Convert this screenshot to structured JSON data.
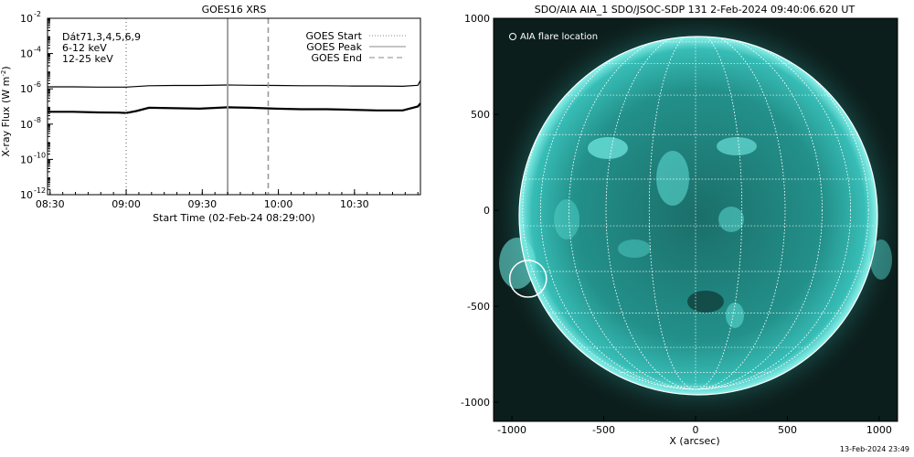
{
  "goes_panel": {
    "title": "GOES16 XRS",
    "ylabel": "X-ray Flux (W m",
    "ylabel_sup": "-2",
    "ylabel_end": ")",
    "xlabel": "Start Time (02-Feb-24 08:29:00)",
    "channels": [
      {
        "label": "Dát71,3,4,5,6,9",
        "color": "#000000"
      },
      {
        "label": "6-12 keV",
        "color": "#cc00cc"
      },
      {
        "label": "12-25 keV",
        "color": "#00cc00"
      }
    ],
    "legend": [
      {
        "label": "GOES Start",
        "style": "dotted"
      },
      {
        "label": "GOES Peak",
        "style": "solid"
      },
      {
        "label": "GOES End",
        "style": "dashed"
      }
    ]
  },
  "aia_panel": {
    "title": "SDO/AIA AIA_1 SDO/JSOC-SDP 131  2-Feb-2024 09:40:06.620 UT",
    "xlabel": "X (arcsec)",
    "legend_label": "AIA flare location",
    "colors": {
      "disk": "#2fb8b0",
      "background": "#0c1e1c",
      "grid": "#ffffff"
    }
  },
  "footer": {
    "timestamp": "13-Feb-2024 23:49"
  },
  "chart_data": [
    {
      "type": "line",
      "title": "GOES16 XRS",
      "xlabel": "Start Time (02-Feb-24 08:29:00)",
      "ylabel": "X-ray Flux (W m^-2)",
      "yscale": "log",
      "x_ticks": [
        "08:30",
        "09:00",
        "09:30",
        "10:00",
        "10:30"
      ],
      "x_tick_minutes": [
        1,
        31,
        61,
        91,
        121
      ],
      "y_ticks": [
        {
          "exp": "-2",
          "value": 0.01
        },
        {
          "exp": "-4",
          "value": 0.0001
        },
        {
          "exp": "-6",
          "value": 1e-06
        },
        {
          "exp": "-8",
          "value": 1e-08
        },
        {
          "exp": "-10",
          "value": 1e-10
        },
        {
          "exp": "-12",
          "value": 1e-12
        }
      ],
      "x_range_minutes": [
        0,
        147
      ],
      "ylim": [
        1e-12,
        0.01
      ],
      "grid": false,
      "legend_position": "top-right",
      "markers": [
        {
          "name": "GOES Start",
          "time": "09:00",
          "minute": 31,
          "style": "dotted"
        },
        {
          "name": "GOES Peak",
          "time": "09:40",
          "minute": 71,
          "style": "solid"
        },
        {
          "name": "GOES End",
          "time": "09:56",
          "minute": 87,
          "style": "dashed"
        }
      ],
      "series": [
        {
          "color": "#000000",
          "x": [
            0,
            10,
            20,
            31,
            40,
            50,
            60,
            71,
            80,
            90,
            100,
            110,
            120,
            130,
            140,
            146,
            147
          ],
          "y": [
            1.3e-06,
            1.3e-06,
            1.25e-06,
            1.25e-06,
            1.5e-06,
            1.55e-06,
            1.55e-06,
            1.65e-06,
            1.6e-06,
            1.55e-06,
            1.5e-06,
            1.5e-06,
            1.45e-06,
            1.45e-06,
            1.4e-06,
            1.6e-06,
            3e-06
          ]
        },
        {
          "color": "#000000",
          "x": [
            0,
            10,
            20,
            28,
            31,
            35,
            40,
            50,
            60,
            71,
            80,
            90,
            100,
            110,
            120,
            130,
            140,
            146,
            147
          ],
          "y": [
            5e-08,
            5e-08,
            4.6e-08,
            4.5e-08,
            4.3e-08,
            5.5e-08,
            8.5e-08,
            8e-08,
            7.5e-08,
            9e-08,
            8.5e-08,
            7.5e-08,
            7e-08,
            7e-08,
            6.5e-08,
            6e-08,
            6e-08,
            1e-07,
            1.5e-07
          ]
        }
      ]
    },
    {
      "type": "scatter",
      "title": "SDO/AIA AIA_1 SDO/JSOC-SDP 131  2-Feb-2024 09:40:06.620 UT",
      "xlabel": "X (arcsec)",
      "x_ticks": [
        -1000,
        -500,
        0,
        500,
        1000
      ],
      "y_ticks": [
        1000,
        500,
        0,
        -500,
        -1000
      ],
      "xlim": [
        -1100,
        1100
      ],
      "ylim": [
        -1100,
        1000
      ],
      "solar_radius_arcsec": 975,
      "flare_location": {
        "x": -912,
        "y": -357,
        "radius_arcsec": 100
      }
    }
  ]
}
